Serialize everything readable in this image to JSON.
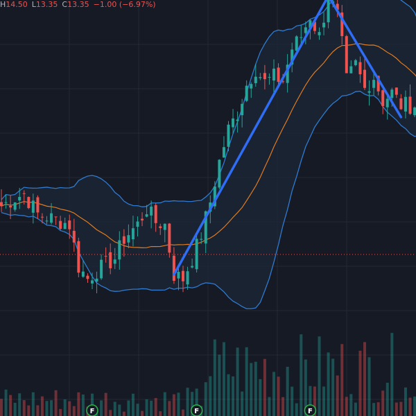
{
  "legend": {
    "high_label": "H",
    "high_value": "14.50",
    "low_label": "L",
    "low_value": "13.35",
    "close_label": "C",
    "close_value": "13.35",
    "change": "−1.00 (−6.97%)"
  },
  "earnings_marker_label": "F",
  "colors": {
    "background": "#161a25",
    "grid": "#222834",
    "up_candle": "#26a69a",
    "down_candle": "#ef5350",
    "bollinger_band": "#2e7bd1",
    "bollinger_fill": "#1c2736",
    "moving_average": "#e07b1f",
    "trend_line": "#2f6df6",
    "price_line": "#ef5350",
    "earnings_badge": "#2bb24c"
  },
  "chart_data": {
    "type": "candlestick",
    "price_scale": {
      "top": 16.5,
      "bottom": 11.35
    },
    "price_line": 13.35,
    "earnings_markers_at_bar": [
      20,
      43,
      68
    ],
    "anchor_points": [
      [
        0,
        13.95
      ],
      [
        3,
        14.05
      ],
      [
        5,
        14.1
      ],
      [
        8,
        13.85
      ],
      [
        12,
        13.78
      ],
      [
        15,
        13.72
      ],
      [
        17,
        13.2
      ],
      [
        19,
        13.05
      ],
      [
        21,
        13.15
      ],
      [
        25,
        13.3
      ],
      [
        27,
        13.55
      ],
      [
        30,
        13.72
      ],
      [
        32,
        13.92
      ],
      [
        34,
        13.75
      ],
      [
        36,
        13.72
      ],
      [
        38,
        13.1
      ],
      [
        40,
        13.05
      ],
      [
        42,
        13.3
      ],
      [
        44,
        13.6
      ],
      [
        46,
        14.0
      ],
      [
        48,
        14.5
      ],
      [
        50,
        14.9
      ],
      [
        52,
        15.1
      ],
      [
        54,
        15.45
      ],
      [
        56,
        15.65
      ],
      [
        58,
        15.48
      ],
      [
        60,
        15.55
      ],
      [
        62,
        15.5
      ],
      [
        64,
        15.9
      ],
      [
        66,
        16.05
      ],
      [
        68,
        16.3
      ],
      [
        70,
        16.05
      ],
      [
        72,
        16.55
      ],
      [
        74,
        16.3
      ],
      [
        75,
        15.95
      ],
      [
        76,
        15.5
      ],
      [
        78,
        15.7
      ],
      [
        80,
        15.4
      ],
      [
        82,
        15.55
      ],
      [
        84,
        15.25
      ],
      [
        86,
        15.35
      ],
      [
        88,
        15.2
      ]
    ],
    "trend_lines": [
      {
        "from": [
          38,
          13.1
        ],
        "to": [
          72,
          16.55
        ]
      },
      {
        "from": [
          72,
          16.55
        ],
        "to": [
          88,
          15.05
        ]
      }
    ],
    "bollinger_period": 20,
    "bollinger_width": 1.6,
    "volume_scale_max": 1
  }
}
